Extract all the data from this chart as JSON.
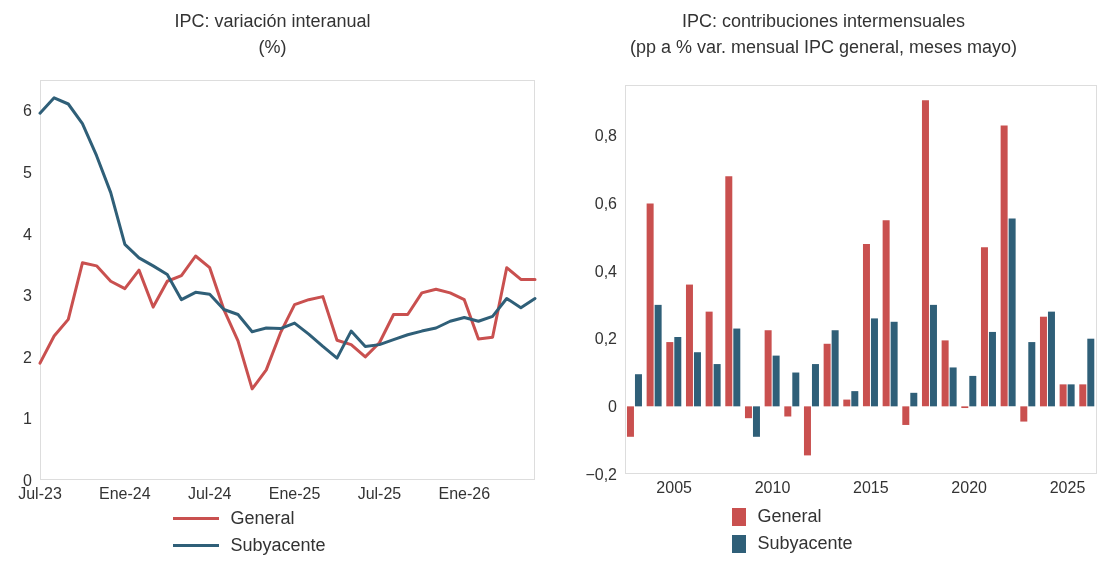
{
  "chart_data": [
    {
      "type": "line",
      "title": "IPC: variación interanual",
      "subtitle": "(%)",
      "categories": [
        "Jul-23",
        null,
        null,
        null,
        null,
        null,
        "Ene-24",
        null,
        null,
        null,
        null,
        null,
        "Jul-24",
        null,
        null,
        null,
        null,
        null,
        "Ene-25",
        null,
        null,
        null,
        null,
        null,
        "Jul-25",
        null,
        null,
        null,
        null,
        null,
        "Ene-26",
        null,
        null,
        null,
        null,
        null
      ],
      "series": [
        {
          "name": "General",
          "color": "#c9504f",
          "values": [
            1.9,
            2.34,
            2.61,
            3.53,
            3.48,
            3.23,
            3.11,
            3.41,
            2.81,
            3.23,
            3.32,
            3.64,
            3.45,
            2.77,
            2.26,
            1.48,
            1.79,
            2.39,
            2.85,
            2.93,
            2.98,
            2.27,
            2.2,
            2.0,
            2.23,
            2.69,
            2.69,
            3.04,
            3.1,
            3.04,
            2.93,
            2.29,
            2.32,
            3.45,
            3.26,
            3.26
          ]
        },
        {
          "name": "Subyacente",
          "color": "#2f5f78",
          "values": [
            5.96,
            6.21,
            6.11,
            5.79,
            5.27,
            4.67,
            3.83,
            3.61,
            3.48,
            3.34,
            2.93,
            3.05,
            3.02,
            2.77,
            2.69,
            2.41,
            2.47,
            2.46,
            2.55,
            2.37,
            2.17,
            1.98,
            2.42,
            2.17,
            2.2,
            2.28,
            2.36,
            2.42,
            2.47,
            2.58,
            2.64,
            2.58,
            2.66,
            2.95,
            2.8,
            2.95
          ]
        }
      ],
      "ylim": [
        0,
        6.5
      ],
      "yticks": [
        0,
        1,
        2,
        3,
        4,
        5,
        6
      ],
      "grid": false,
      "legend": "bottom",
      "marker": "none",
      "line_style": "solid"
    },
    {
      "type": "bar",
      "title": "IPC: contribuciones intermensuales",
      "subtitle": "(pp a % var. mensual IPC general, meses mayo)",
      "categories": [
        null,
        null,
        "2005",
        null,
        null,
        null,
        null,
        "2010",
        null,
        null,
        null,
        null,
        "2015",
        null,
        null,
        null,
        null,
        "2020",
        null,
        null,
        null,
        null,
        "2025",
        null
      ],
      "series": [
        {
          "name": "General",
          "color": "#c9504f",
          "values": [
            -0.09,
            0.6,
            0.19,
            0.36,
            0.28,
            0.68,
            -0.035,
            0.225,
            -0.03,
            -0.145,
            0.185,
            0.02,
            0.48,
            0.55,
            -0.055,
            0.905,
            0.195,
            -0.005,
            0.47,
            0.83,
            -0.045,
            0.265,
            0.065,
            0.065
          ]
        },
        {
          "name": "Subyacente",
          "color": "#2f5f78",
          "values": [
            0.095,
            0.3,
            0.205,
            0.16,
            0.125,
            0.23,
            -0.09,
            0.15,
            0.1,
            0.125,
            0.225,
            0.045,
            0.26,
            0.25,
            0.04,
            0.3,
            0.115,
            0.09,
            0.22,
            0.555,
            0.19,
            0.28,
            0.065,
            0.2
          ]
        }
      ],
      "ylim": [
        -0.2,
        0.95
      ],
      "yticks": [
        {
          "value": -0.2,
          "label": "−0,2"
        },
        {
          "value": 0,
          "label": "0"
        },
        {
          "value": 0.2,
          "label": "0,2"
        },
        {
          "value": 0.4,
          "label": "0,4"
        },
        {
          "value": 0.6,
          "label": "0,6"
        },
        {
          "value": 0.8,
          "label": "0,8"
        }
      ],
      "grid": false,
      "legend": "bottom"
    }
  ]
}
